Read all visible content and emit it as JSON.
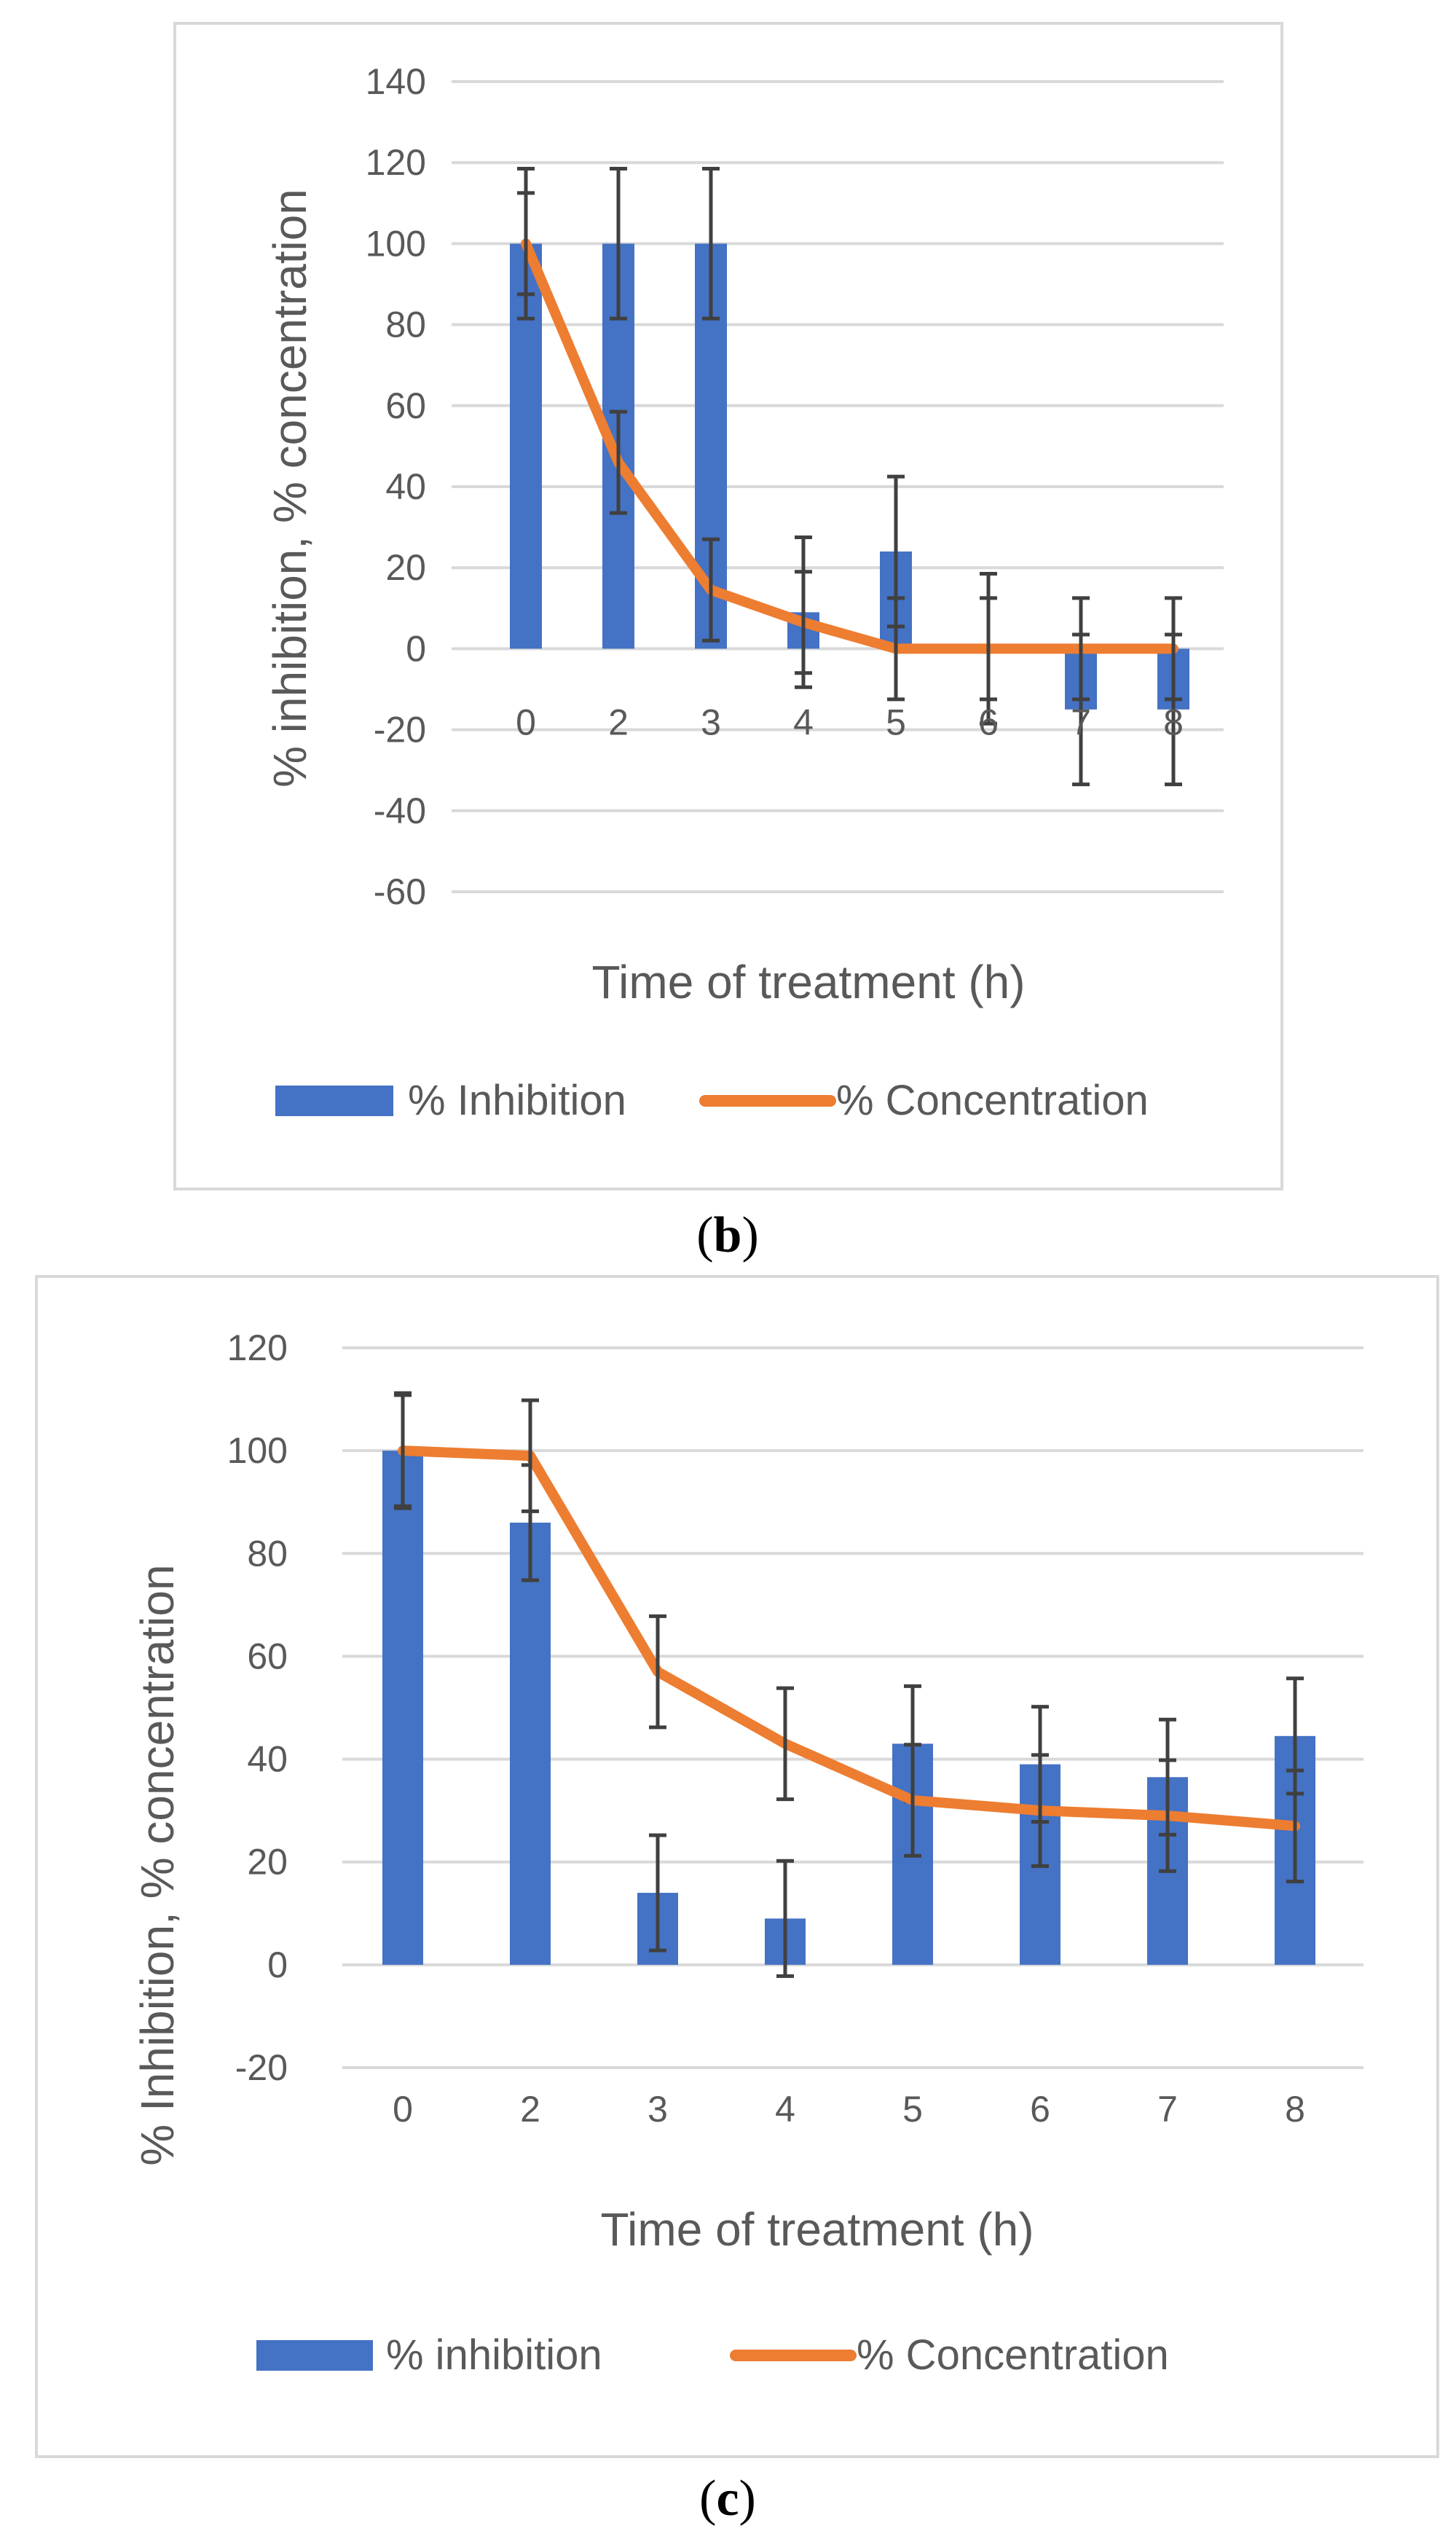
{
  "chart_data": [
    {
      "type": "bar",
      "panel": "b",
      "caption": "b",
      "categories": [
        "0",
        "2",
        "3",
        "4",
        "5",
        "6",
        "7",
        "8"
      ],
      "xlabel": "Time of treatment (h)",
      "ylabel": "% inhibition, % concentration",
      "ylim": [
        -60,
        140
      ],
      "yticks": [
        -60,
        -40,
        -20,
        0,
        20,
        40,
        60,
        80,
        100,
        120,
        140
      ],
      "grid": true,
      "legend_position": "bottom",
      "series": [
        {
          "name": "% Inhibition",
          "kind": "bar",
          "color": "#4472C4",
          "values": [
            100,
            100,
            100,
            9,
            24,
            0,
            -15,
            -15
          ],
          "error": [
            18.5,
            18.5,
            18.5,
            18.5,
            18.5,
            18.5,
            18.5,
            18.5
          ]
        },
        {
          "name": "% Concentration",
          "kind": "line",
          "color": "#ED7D31",
          "values": [
            100,
            46,
            14.5,
            6.5,
            0,
            0,
            0,
            0
          ],
          "error": [
            12.5,
            12.5,
            12.5,
            12.5,
            12.5,
            12.5,
            12.5,
            12.5
          ]
        }
      ]
    },
    {
      "type": "bar",
      "panel": "c",
      "caption": "c",
      "categories": [
        "0",
        "2",
        "3",
        "4",
        "5",
        "6",
        "7",
        "8"
      ],
      "xlabel": "Time of treatment (h)",
      "ylabel": "% Inhibition, % concentration",
      "ylim": [
        -20,
        120
      ],
      "yticks": [
        -20,
        0,
        20,
        40,
        60,
        80,
        100,
        120
      ],
      "grid": true,
      "legend_position": "bottom",
      "series": [
        {
          "name": "% inhibition",
          "kind": "bar",
          "color": "#4472C4",
          "values": [
            100,
            86,
            14,
            9,
            43,
            39,
            36.5,
            44.5
          ],
          "error": [
            11.2,
            11.2,
            11.2,
            11.2,
            11.2,
            11.2,
            11.2,
            11.2
          ]
        },
        {
          "name": "% Concentration",
          "kind": "line",
          "color": "#ED7D31",
          "values": [
            100,
            99,
            57,
            43,
            32,
            30,
            29,
            27
          ],
          "error": [
            10.8,
            10.8,
            10.8,
            10.8,
            10.8,
            10.8,
            10.8,
            10.8
          ]
        }
      ]
    }
  ],
  "colors": {
    "grid": "#D9D9D9",
    "text": "#595959",
    "error_bar": "#404040",
    "border": "#D9D9D9"
  }
}
